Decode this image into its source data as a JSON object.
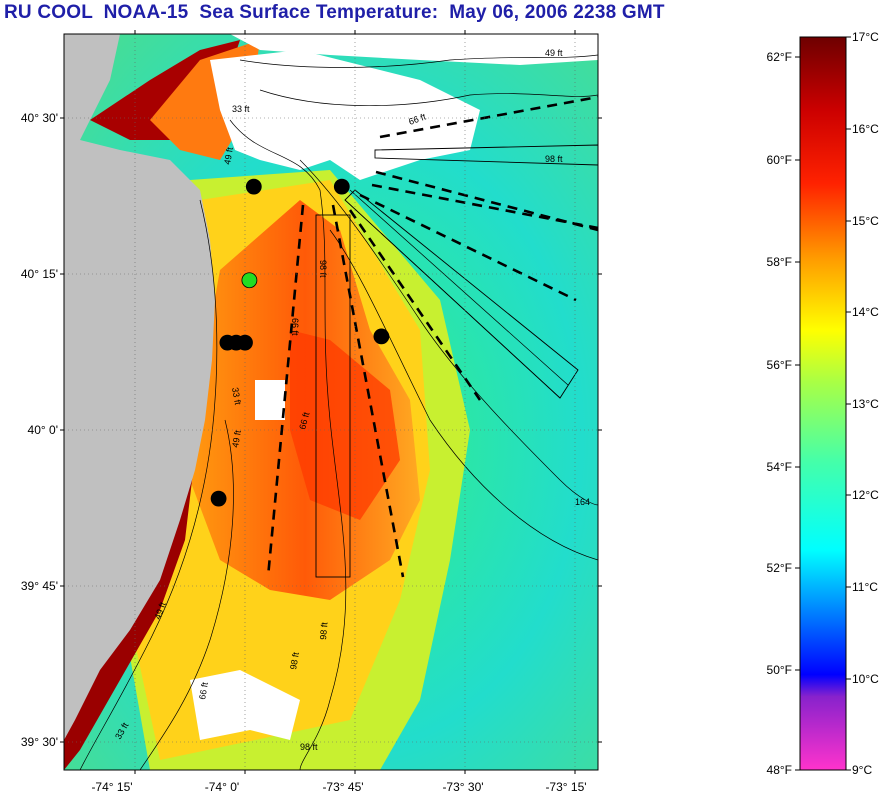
{
  "title": "RU COOL  NOAA-15  Sea Surface Temperature:  May 06, 2006 2238 GMT",
  "map": {
    "lat_labels": [
      "40° 30'",
      "40° 15'",
      "40° 0'",
      "39° 45'",
      "39° 30'"
    ],
    "lon_labels": [
      "-74° 15'",
      "-74° 0'",
      "-73° 45'",
      "-73° 30'",
      "-73° 15'"
    ],
    "contour_labels": [
      "49 ft",
      "66 ft",
      "98 ft",
      "33 ft",
      "49 ft",
      "98 ft",
      "66 ft",
      "33 ft",
      "49 ft",
      "66 ft",
      "98 ft",
      "164",
      "98 ft",
      "66 ft",
      "33 ft",
      "49 ft",
      "98 ft"
    ],
    "markers": [
      {
        "name": "station-1",
        "lat": 40.39,
        "lon": -73.98,
        "color": "#000000"
      },
      {
        "name": "station-2",
        "lat": 40.39,
        "lon": -73.78,
        "color": "#000000"
      },
      {
        "name": "station-3-green",
        "lat": 40.24,
        "lon": -73.99,
        "color": "#22dd22"
      },
      {
        "name": "station-4",
        "lat": 40.14,
        "lon": -74.04,
        "color": "#000000"
      },
      {
        "name": "station-5",
        "lat": 40.14,
        "lon": -74.02,
        "color": "#000000"
      },
      {
        "name": "station-6",
        "lat": 40.14,
        "lon": -74.0,
        "color": "#000000"
      },
      {
        "name": "station-7",
        "lat": 40.15,
        "lon": -73.69,
        "color": "#000000"
      },
      {
        "name": "station-8",
        "lat": 39.89,
        "lon": -74.06,
        "color": "#000000"
      }
    ],
    "colors": {
      "land": "#c0c0c0",
      "no_data": "#ffffff"
    }
  },
  "colorbar": {
    "f_labels": [
      "62°F",
      "60°F",
      "58°F",
      "56°F",
      "54°F",
      "52°F",
      "50°F",
      "48°F"
    ],
    "c_labels": [
      "17°C",
      "16°C",
      "15°C",
      "14°C",
      "13°C",
      "12°C",
      "11°C",
      "10°C",
      "9°C"
    ],
    "range_c": [
      9,
      17
    ],
    "stops": [
      "#ff33cc",
      "#8822cc",
      "#0000ff",
      "#00aaff",
      "#00ffff",
      "#66ffaa",
      "#ffff00",
      "#ff8800",
      "#ff0000",
      "#c80000",
      "#7a0000"
    ]
  }
}
